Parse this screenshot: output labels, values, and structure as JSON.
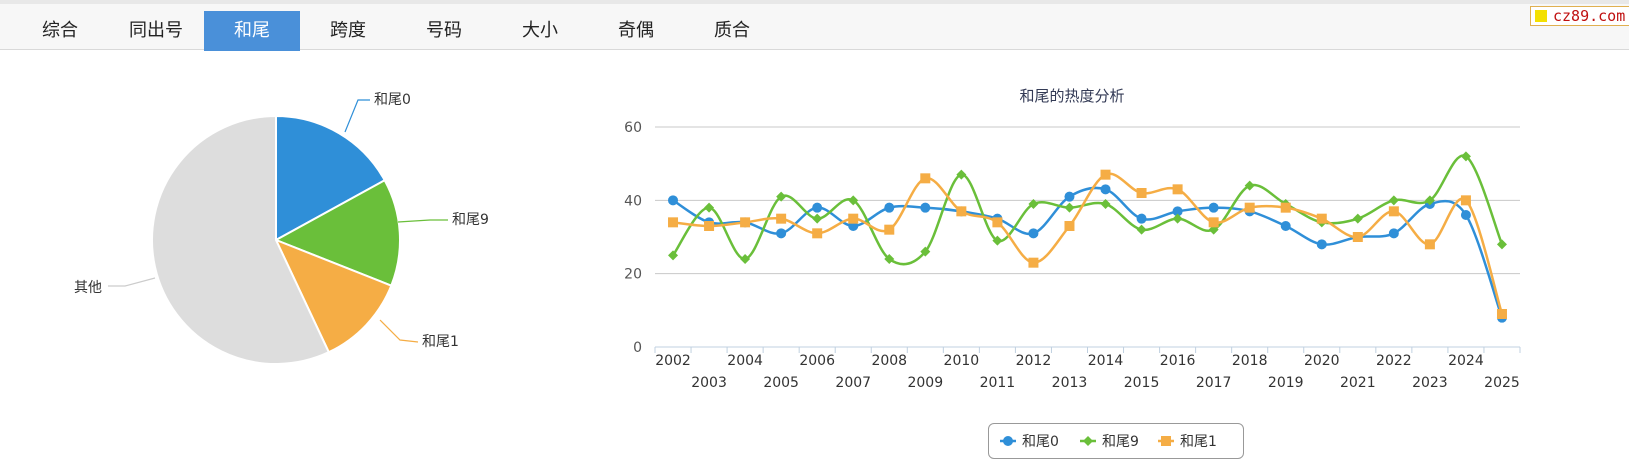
{
  "tabs": [
    {
      "label": "综合",
      "active": false
    },
    {
      "label": "同出号",
      "active": false
    },
    {
      "label": "和尾",
      "active": true
    },
    {
      "label": "跨度",
      "active": false
    },
    {
      "label": "号码",
      "active": false
    },
    {
      "label": "大小",
      "active": false
    },
    {
      "label": "奇偶",
      "active": false
    },
    {
      "label": "质合",
      "active": false
    }
  ],
  "brand": {
    "text": "cz89.com"
  },
  "colors": {
    "tab_active": "#4a90d9",
    "series_0": "#2f8fd8",
    "series_9": "#6abf3a",
    "series_1": "#f5ad45",
    "other": "#dddddd"
  },
  "chart_data": [
    {
      "type": "pie",
      "title": "",
      "slices": [
        {
          "label": "和尾0",
          "value": 0.17,
          "color": "#2f8fd8"
        },
        {
          "label": "和尾9",
          "value": 0.14,
          "color": "#6abf3a"
        },
        {
          "label": "和尾1",
          "value": 0.12,
          "color": "#f5ad45"
        },
        {
          "label": "其他",
          "value": 0.57,
          "color": "#dddddd"
        }
      ]
    },
    {
      "type": "line",
      "title": "和尾的热度分析",
      "xlabel": "",
      "ylabel": "",
      "ylim": [
        0,
        60
      ],
      "yticks": [
        0,
        20,
        40,
        60
      ],
      "grid": true,
      "legend": "bottom-center",
      "x": [
        "2002",
        "2003",
        "2004",
        "2005",
        "2006",
        "2007",
        "2008",
        "2009",
        "2010",
        "2011",
        "2012",
        "2013",
        "2014",
        "2015",
        "2016",
        "2017",
        "2018",
        "2019",
        "2020",
        "2021",
        "2022",
        "2023",
        "2024",
        "2025"
      ],
      "series": [
        {
          "name": "和尾0",
          "color": "#2f8fd8",
          "marker": "circle",
          "values": [
            40,
            34,
            34,
            31,
            38,
            33,
            38,
            38,
            37,
            35,
            31,
            41,
            43,
            35,
            37,
            38,
            37,
            33,
            28,
            30,
            31,
            39,
            36,
            8
          ]
        },
        {
          "name": "和尾9",
          "color": "#6abf3a",
          "marker": "diamond",
          "values": [
            25,
            38,
            24,
            41,
            35,
            40,
            24,
            26,
            47,
            29,
            39,
            38,
            39,
            32,
            35,
            32,
            44,
            39,
            34,
            35,
            40,
            40,
            52,
            28
          ]
        },
        {
          "name": "和尾1",
          "color": "#f5ad45",
          "marker": "square",
          "values": [
            34,
            33,
            34,
            35,
            31,
            35,
            32,
            46,
            37,
            34,
            23,
            33,
            47,
            42,
            43,
            34,
            38,
            38,
            35,
            30,
            37,
            28,
            40,
            9
          ]
        }
      ]
    }
  ]
}
